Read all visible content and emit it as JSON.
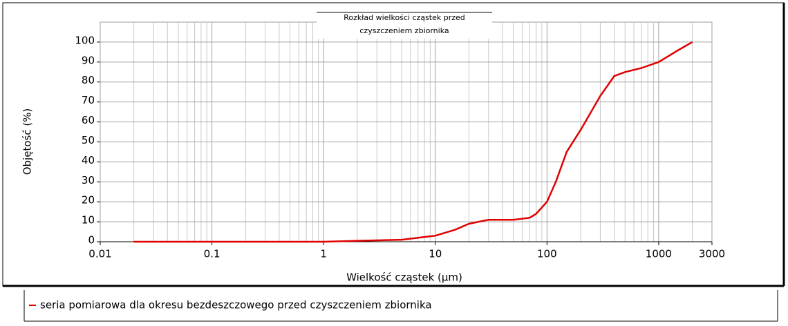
{
  "chart_data": {
    "type": "line",
    "title": [
      "Rozkład wielkości cząstek przed",
      "czyszczeniem zbiornika"
    ],
    "x_label": "Wielkość cząstek (µm)",
    "y_label": "Objętość (%)",
    "x_scale": "log",
    "xlim": [
      0.01,
      3000
    ],
    "xticks": [
      0.01,
      0.1,
      1,
      10,
      100,
      1000,
      3000
    ],
    "ylim": [
      0,
      110
    ],
    "yticks": [
      0,
      10,
      20,
      30,
      40,
      50,
      60,
      70,
      80,
      90,
      100
    ],
    "grid": true,
    "legend": "bottom",
    "series": [
      {
        "name": "seria pomiarowa dla okresu bezdeszczowego przed czyszczeniem zbiornika",
        "color": "#e00000",
        "x": [
          0.02,
          0.1,
          1,
          2,
          5,
          7,
          10,
          15,
          20,
          30,
          50,
          70,
          80,
          100,
          120,
          150,
          200,
          300,
          400,
          500,
          700,
          1000,
          1500,
          2000
        ],
        "values": [
          0,
          0,
          0,
          0.5,
          1,
          2,
          3,
          6,
          9,
          11,
          11,
          12,
          14,
          20,
          30,
          45,
          56,
          73,
          83,
          85,
          87,
          90,
          96,
          100
        ]
      }
    ]
  }
}
